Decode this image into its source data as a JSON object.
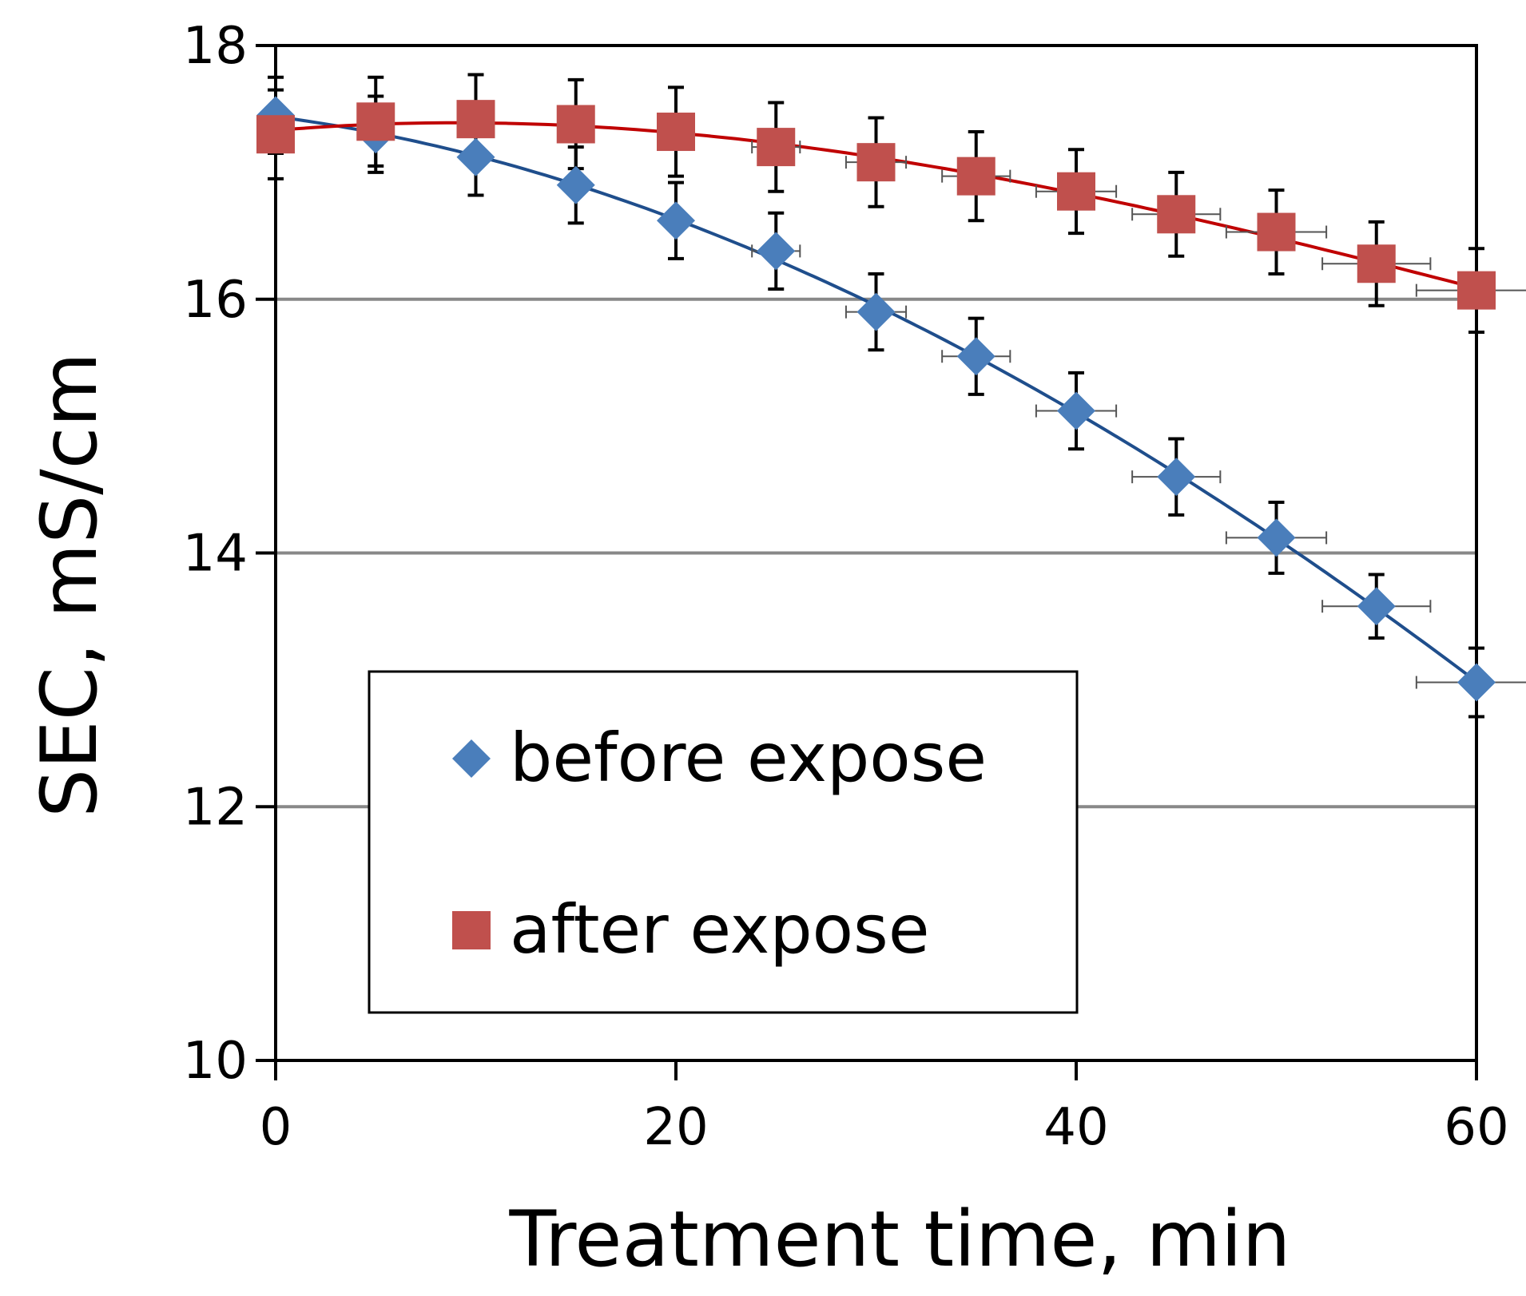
{
  "chart_data": {
    "type": "scatter",
    "title": "",
    "xlabel": "Treatment time, min",
    "ylabel": "SEC, mS/cm",
    "xlim": [
      0,
      60
    ],
    "ylim": [
      10,
      18
    ],
    "xticks": [
      0,
      20,
      40,
      60
    ],
    "yticks": [
      10,
      12,
      14,
      16,
      18
    ],
    "x_tick_labels": [
      "0",
      "20",
      "40",
      "60"
    ],
    "y_tick_labels": [
      "10",
      "12",
      "14",
      "16",
      "18"
    ],
    "grid": "horizontal",
    "legend_position": "bottom-left",
    "series": [
      {
        "name": "before expose",
        "marker": "diamond",
        "color": "#4a7ebb",
        "line_color": "#1f4e8c",
        "x": [
          0,
          5,
          10,
          15,
          20,
          25,
          30,
          35,
          40,
          45,
          50,
          55,
          60
        ],
        "y": [
          17.45,
          17.3,
          17.12,
          16.9,
          16.62,
          16.38,
          15.9,
          15.55,
          15.12,
          14.6,
          14.12,
          13.58,
          12.98
        ],
        "y_err": [
          0.3,
          0.3,
          0.3,
          0.3,
          0.3,
          0.3,
          0.3,
          0.3,
          0.3,
          0.3,
          0.28,
          0.25,
          0.27
        ],
        "x_err": [
          0,
          0,
          0,
          0,
          0,
          1.2,
          1.5,
          1.7,
          2,
          2.2,
          2.5,
          2.7,
          3
        ]
      },
      {
        "name": "after expose",
        "marker": "square",
        "color": "#c0504d",
        "line_color": "#c00000",
        "x": [
          0,
          5,
          10,
          15,
          20,
          25,
          30,
          35,
          40,
          45,
          50,
          55,
          60
        ],
        "y": [
          17.3,
          17.4,
          17.42,
          17.38,
          17.32,
          17.2,
          17.08,
          16.97,
          16.85,
          16.67,
          16.53,
          16.28,
          16.07
        ],
        "y_err": [
          0.35,
          0.35,
          0.35,
          0.35,
          0.35,
          0.35,
          0.35,
          0.35,
          0.33,
          0.33,
          0.33,
          0.33,
          0.33
        ],
        "x_err": [
          0,
          0,
          0,
          0,
          0,
          1.2,
          1.5,
          1.7,
          2,
          2.2,
          2.5,
          2.7,
          3
        ]
      }
    ]
  }
}
